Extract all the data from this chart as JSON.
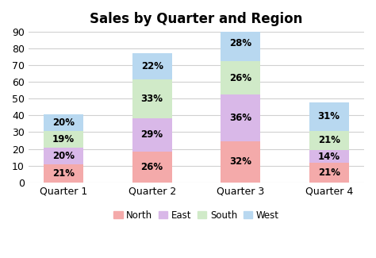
{
  "title": "Sales by Quarter and Region",
  "categories": [
    "Quarter 1",
    "Quarter 2",
    "Quarter 3",
    "Quarter 4"
  ],
  "regions": [
    "North",
    "East",
    "South",
    "West"
  ],
  "values": {
    "North": [
      10.71,
      18.2,
      24.64,
      11.55
    ],
    "East": [
      10.2,
      20.3,
      27.72,
      7.7
    ],
    "South": [
      9.69,
      23.1,
      20.02,
      11.55
    ],
    "West": [
      10.2,
      15.4,
      21.56,
      17.05
    ]
  },
  "percentages": {
    "North": [
      "21%",
      "26%",
      "32%",
      "21%"
    ],
    "East": [
      "20%",
      "29%",
      "36%",
      "14%"
    ],
    "South": [
      "19%",
      "33%",
      "26%",
      "21%"
    ],
    "West": [
      "20%",
      "22%",
      "28%",
      "31%"
    ]
  },
  "colors": {
    "North": "#F4AAAA",
    "East": "#D9B8E8",
    "South": "#D0EAC8",
    "West": "#B8D8F0"
  },
  "ylim": [
    0,
    90
  ],
  "yticks": [
    0,
    10,
    20,
    30,
    40,
    50,
    60,
    70,
    80,
    90
  ],
  "background_color": "#ffffff",
  "grid_color": "#d0d0d0",
  "title_fontsize": 12,
  "label_fontsize": 8.5,
  "tick_fontsize": 9,
  "legend_fontsize": 8.5,
  "bar_width": 0.45
}
